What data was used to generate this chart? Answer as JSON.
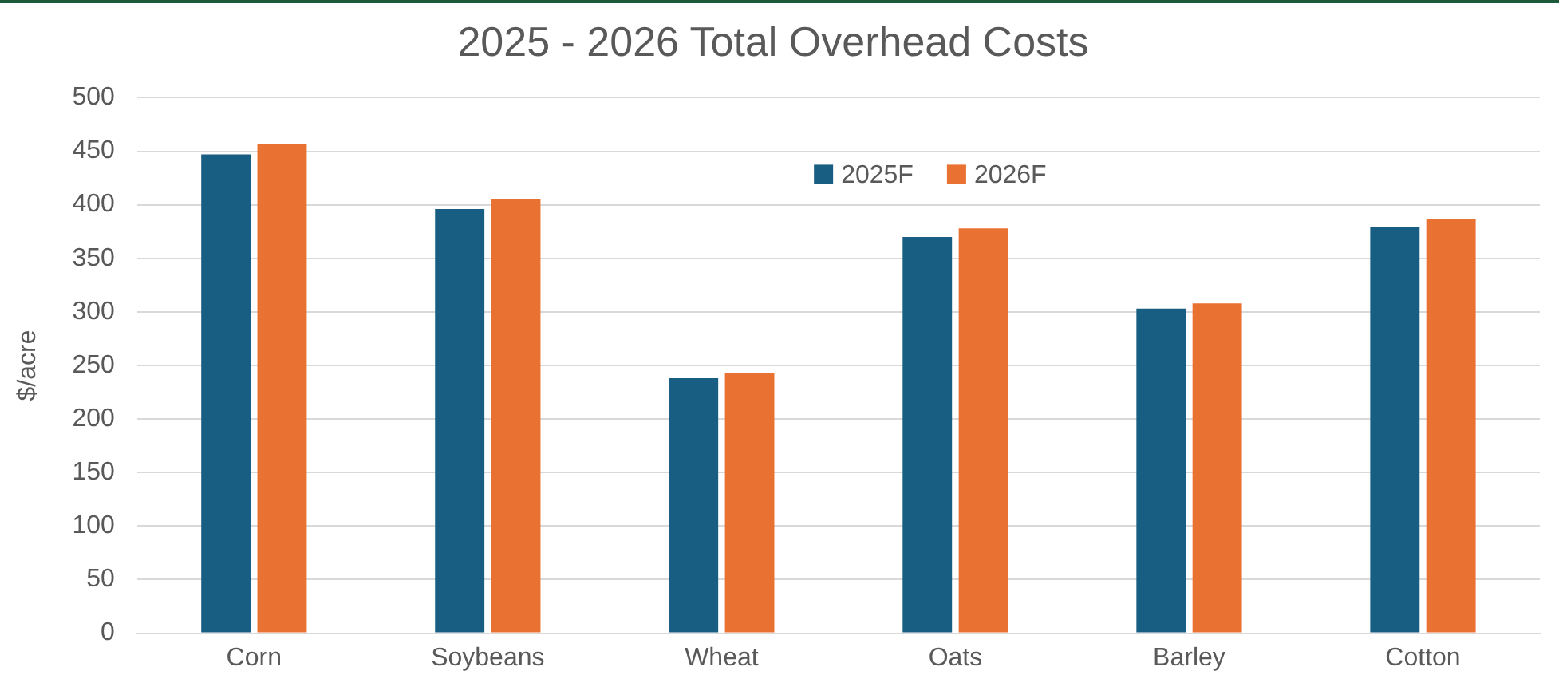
{
  "chart_data": {
    "type": "bar",
    "title": "2025 - 2026 Total Overhead Costs",
    "ylabel": "$/acre",
    "categories": [
      "Corn",
      "Soybeans",
      "Wheat",
      "Oats",
      "Barley",
      "Cotton"
    ],
    "series": [
      {
        "name": "2025F",
        "color": "#175e82",
        "values": [
          447,
          396,
          238,
          370,
          303,
          379
        ]
      },
      {
        "name": "2026F",
        "color": "#e97132",
        "values": [
          457,
          405,
          243,
          378,
          308,
          387
        ]
      }
    ],
    "ylim": [
      0,
      500
    ],
    "yticks": [
      0,
      50,
      100,
      150,
      200,
      250,
      300,
      350,
      400,
      450,
      500
    ],
    "grid": "y",
    "legend": "top"
  }
}
